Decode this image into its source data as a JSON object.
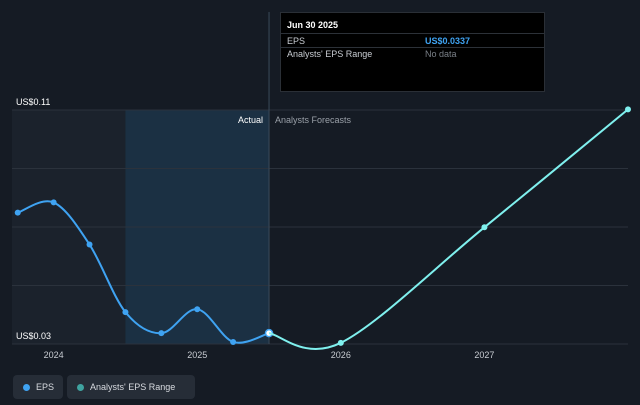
{
  "colors": {
    "background": "#151b24",
    "eps_line": "#3fa3f2",
    "forecast_line": "#7ff0ee",
    "actual_shade": "#1b222c",
    "highlight_shade": "#1b3c58",
    "grid": "#2b323c"
  },
  "tooltip": {
    "date": "Jun 30 2025",
    "rows": [
      {
        "label": "EPS",
        "value": "US$0.0337"
      },
      {
        "label": "Analysts' EPS Range",
        "value": "No data"
      }
    ]
  },
  "legend": [
    {
      "label": "EPS",
      "icon": "eps-dot-icon"
    },
    {
      "label": "Analysts' EPS Range",
      "icon": "range-dot-icon"
    }
  ],
  "chart_data": {
    "type": "line",
    "ylim": [
      0.03,
      0.11
    ],
    "y_tick_labels": [
      {
        "value": 0.11,
        "label": "US$0.11"
      },
      {
        "value": 0.03,
        "label": "US$0.03"
      }
    ],
    "x_ticks": [
      2024,
      2025,
      2026,
      2027
    ],
    "xlim": [
      2023.71,
      2028.0
    ],
    "section_labels": {
      "actual": "Actual",
      "forecast": "Analysts Forecasts"
    },
    "divider_x": 2025.5,
    "highlight_range": [
      2024.5,
      2025.5
    ],
    "grid": true,
    "series": [
      {
        "name": "EPS",
        "role": "actual",
        "points": [
          {
            "x": 2023.75,
            "y": 0.0749
          },
          {
            "x": 2024.0,
            "y": 0.0784
          },
          {
            "x": 2024.25,
            "y": 0.064
          },
          {
            "x": 2024.5,
            "y": 0.0409
          },
          {
            "x": 2024.75,
            "y": 0.0337
          },
          {
            "x": 2025.0,
            "y": 0.0419
          },
          {
            "x": 2025.25,
            "y": 0.0307
          },
          {
            "x": 2025.5,
            "y": 0.0337
          }
        ]
      },
      {
        "name": "Analysts Forecasts",
        "role": "forecast",
        "points": [
          {
            "x": 2025.5,
            "y": 0.0337
          },
          {
            "x": 2026.0,
            "y": 0.0304
          },
          {
            "x": 2027.0,
            "y": 0.0699
          },
          {
            "x": 2028.0,
            "y": 0.1102
          }
        ]
      }
    ]
  }
}
